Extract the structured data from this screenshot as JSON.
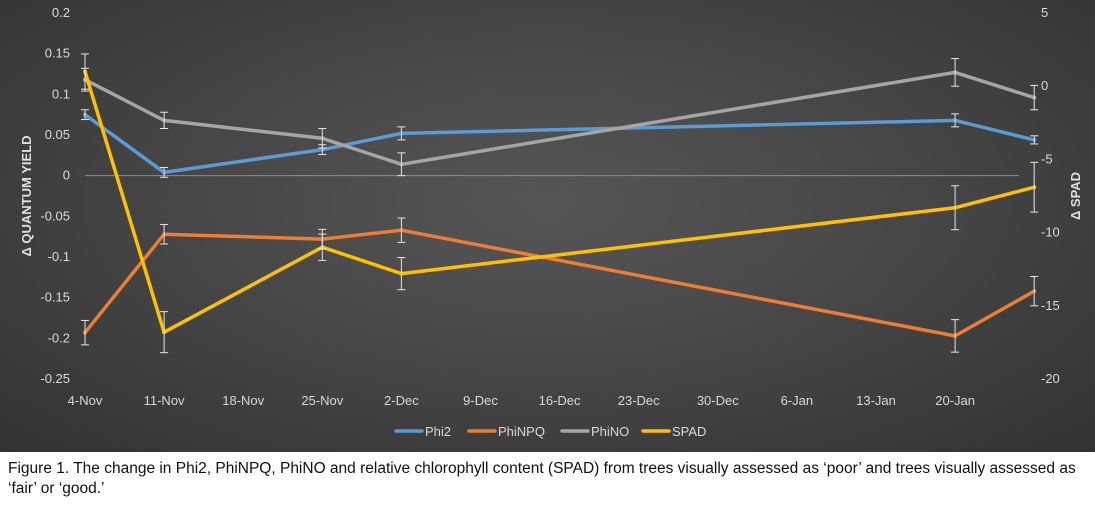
{
  "chart_data": {
    "type": "line",
    "x_dates": [
      "2015-11-04",
      "2015-11-11",
      "2015-11-25",
      "2015-12-02",
      "2016-01-20",
      "2016-01-27"
    ],
    "x_tick_labels": [
      "4-Nov",
      "11-Nov",
      "18-Nov",
      "25-Nov",
      "2-Dec",
      "9-Dec",
      "16-Dec",
      "23-Dec",
      "30-Dec",
      "6-Jan",
      "13-Jan",
      "20-Jan"
    ],
    "ylabel": "Δ QUANTUM YIELD",
    "ylim": [
      -0.25,
      0.2
    ],
    "y_ticks": [
      "0.2",
      "0.15",
      "0.1",
      "0.05",
      "0",
      "-0.05",
      "-0.1",
      "-0.15",
      "-0.2",
      "-0.25"
    ],
    "y2label": "Δ SPAD",
    "y2lim": [
      -20,
      5
    ],
    "y2_ticks": [
      "5",
      "0",
      "-5",
      "-10",
      "-15",
      "-20"
    ],
    "grid": false,
    "legend_position": "bottom",
    "series": [
      {
        "name": "Phi2",
        "axis": "left",
        "color": "#5b9bd5",
        "values": [
          0.075,
          0.004,
          0.032,
          0.052,
          0.068,
          0.044
        ],
        "errors": [
          0.006,
          0.006,
          0.006,
          0.008,
          0.008,
          0.005
        ]
      },
      {
        "name": "PhiNPQ",
        "axis": "left",
        "color": "#ed7d31",
        "values": [
          -0.193,
          -0.072,
          -0.078,
          -0.067,
          -0.197,
          -0.142
        ],
        "errors": [
          0.015,
          0.012,
          0.012,
          0.015,
          0.02,
          0.018
        ]
      },
      {
        "name": "PhiNO",
        "axis": "left",
        "color": "#a5a5a5",
        "values": [
          0.118,
          0.068,
          0.046,
          0.014,
          0.127,
          0.096
        ],
        "errors": [
          0.014,
          0.01,
          0.012,
          0.014,
          0.017,
          0.015
        ]
      },
      {
        "name": "SPAD",
        "axis": "right",
        "color": "#ffc000",
        "values": [
          1.0,
          -16.8,
          -11.0,
          -12.8,
          -8.3,
          -6.9
        ],
        "errors": [
          1.2,
          1.4,
          0.9,
          1.1,
          1.5,
          1.7
        ]
      }
    ]
  },
  "caption": {
    "text": "Figure 1. The change in Phi2, PhiNPQ, PhiNO and relative chlorophyll content (SPAD) from trees visually assessed as ‘poor’ and trees visually assessed as ‘fair’ or ‘good.’"
  }
}
